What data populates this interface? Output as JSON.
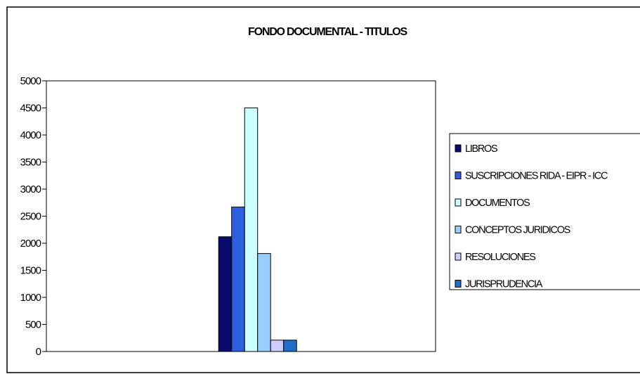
{
  "chart_data": {
    "type": "bar",
    "title": "FONDO DOCUMENTAL - TITULOS",
    "xlabel": "",
    "ylabel": "",
    "ylim": [
      0,
      5000
    ],
    "yticks": [
      0,
      500,
      1000,
      1500,
      2000,
      2500,
      3000,
      3500,
      4000,
      4500,
      5000
    ],
    "grid": false,
    "legend_position": "right",
    "categories": [
      ""
    ],
    "series": [
      {
        "name": "LIBROS",
        "values": [
          2120
        ],
        "color": "#0b0b6e"
      },
      {
        "name": "SUSCRIPCIONES RIDA - EIPR - ICC",
        "values": [
          2670
        ],
        "color": "#2f5fe0"
      },
      {
        "name": "DOCUMENTOS",
        "values": [
          4500
        ],
        "color": "#ccffff"
      },
      {
        "name": "CONCEPTOS JURIDICOS",
        "values": [
          1810
        ],
        "color": "#99ccff"
      },
      {
        "name": "RESOLUCIONES",
        "values": [
          210
        ],
        "color": "#ccccff"
      },
      {
        "name": "JURISPRUDENCIA",
        "values": [
          210
        ],
        "color": "#1f6fc6"
      }
    ]
  }
}
